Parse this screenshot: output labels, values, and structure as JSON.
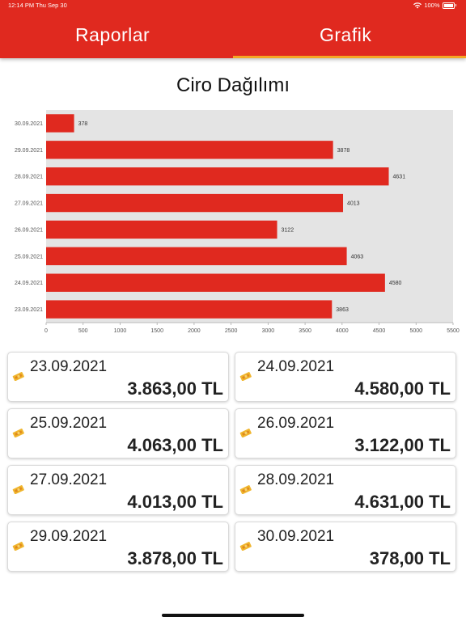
{
  "status_bar": {
    "time": "12:14 PM",
    "date": "Thu Sep 30",
    "battery": "100%"
  },
  "tabs": [
    {
      "label": "Raporlar"
    },
    {
      "label": "Grafik"
    }
  ],
  "colors": {
    "accent": "#e0291f",
    "tab_indicator": "#f5a623",
    "plot_bg": "#e4e4e4"
  },
  "chart_data": {
    "type": "bar",
    "orientation": "horizontal",
    "title": "Ciro Dağılımı",
    "categories": [
      "30.09.2021",
      "29.09.2021",
      "28.09.2021",
      "27.09.2021",
      "26.09.2021",
      "25.09.2021",
      "24.09.2021",
      "23.09.2021"
    ],
    "values": [
      378,
      3878,
      4631,
      4013,
      3122,
      4063,
      4580,
      3863
    ],
    "value_labels": [
      "378",
      "3878",
      "4631",
      "4013",
      "3122",
      "4063",
      "4580",
      "3863"
    ],
    "xlim": [
      0,
      5500
    ],
    "xticks": [
      "0",
      "500",
      "1000",
      "1500",
      "2000",
      "2500",
      "3000",
      "3500",
      "4000",
      "4500",
      "5000",
      "5500"
    ],
    "bar_color": "#e0291f",
    "grid": false
  },
  "cards": [
    {
      "date": "23.09.2021",
      "amount": "3.863,00 TL",
      "icon": "money-icon"
    },
    {
      "date": "24.09.2021",
      "amount": "4.580,00 TL",
      "icon": "money-icon"
    },
    {
      "date": "25.09.2021",
      "amount": "4.063,00 TL",
      "icon": "money-icon"
    },
    {
      "date": "26.09.2021",
      "amount": "3.122,00 TL",
      "icon": "money-icon"
    },
    {
      "date": "27.09.2021",
      "amount": "4.013,00 TL",
      "icon": "money-icon"
    },
    {
      "date": "28.09.2021",
      "amount": "4.631,00 TL",
      "icon": "money-icon"
    },
    {
      "date": "29.09.2021",
      "amount": "3.878,00 TL",
      "icon": "money-icon"
    },
    {
      "date": "30.09.2021",
      "amount": "378,00 TL",
      "icon": "money-icon"
    }
  ]
}
